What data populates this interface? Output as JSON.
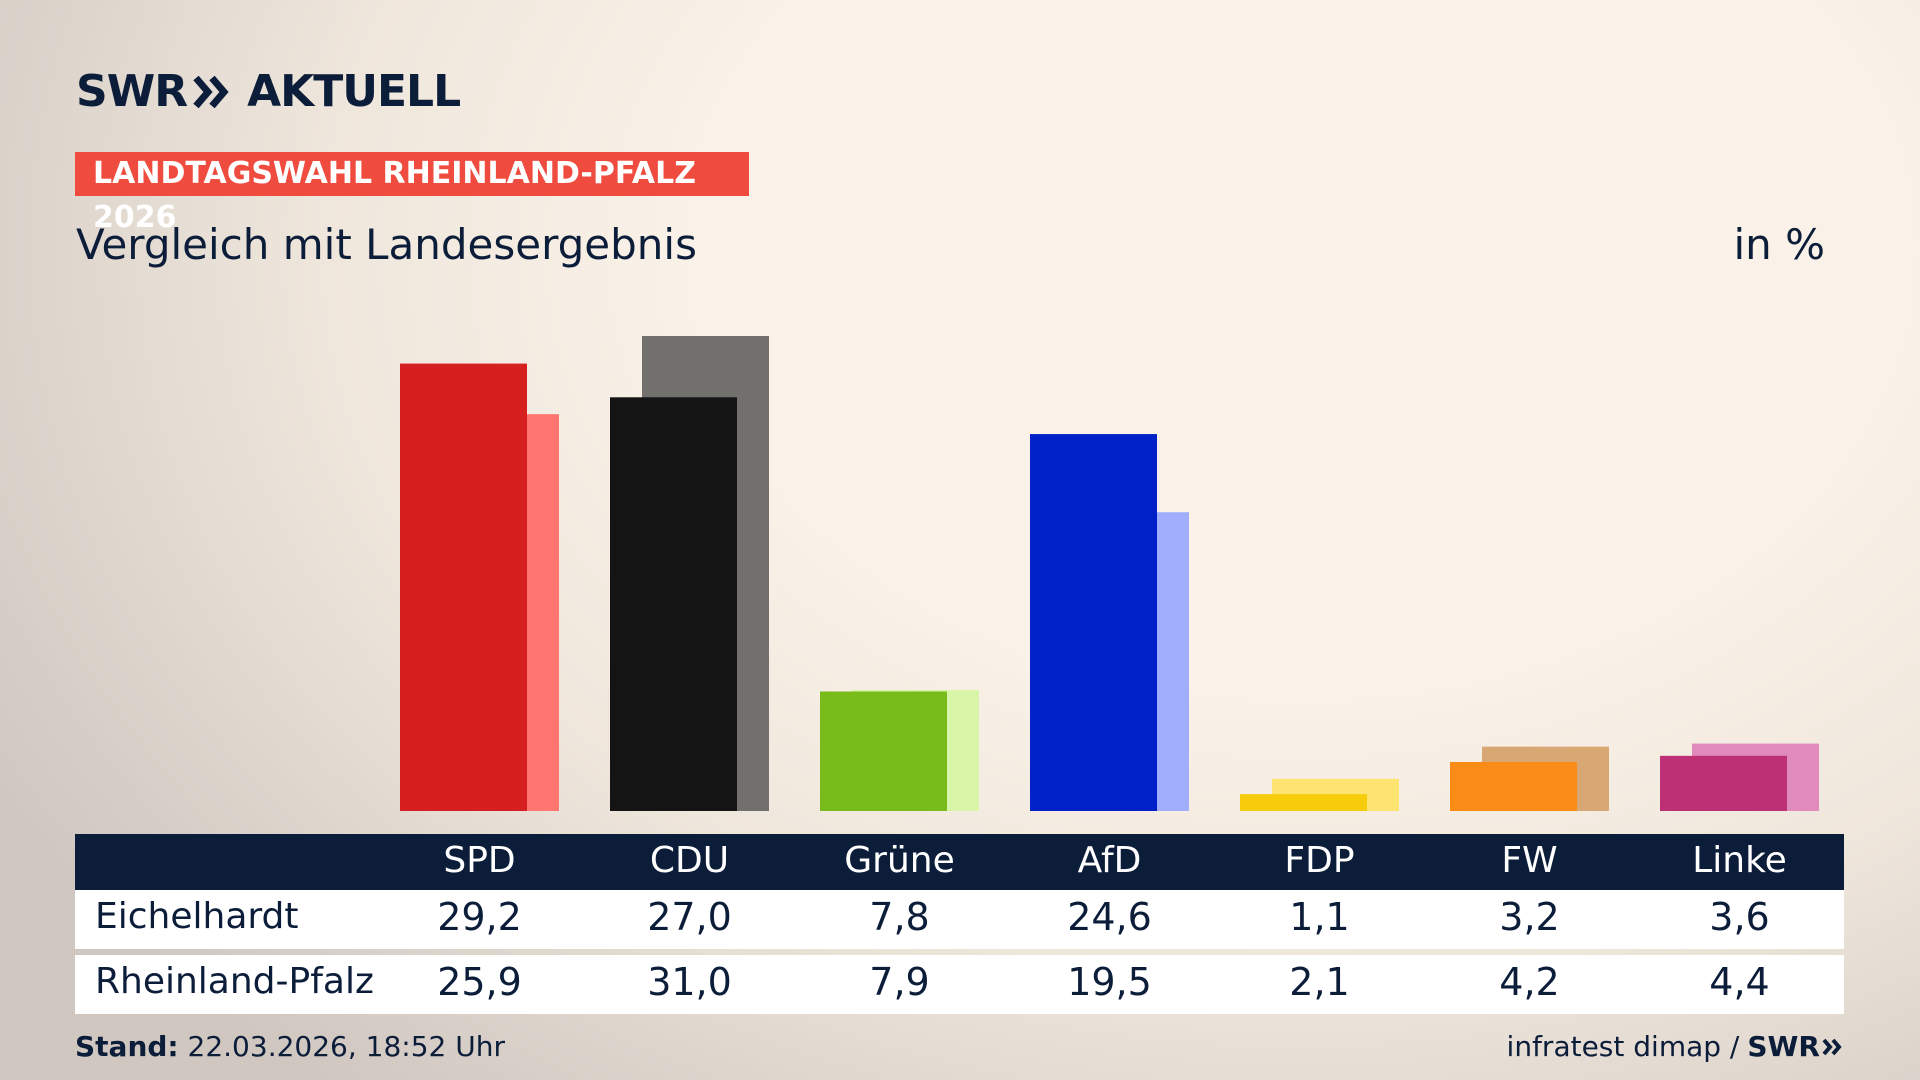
{
  "chart_data": {
    "type": "bar",
    "brand": "SWR",
    "brand_suffix": "AKTUELL",
    "kicker": "LANDTAGSWAHL RHEINLAND-PFALZ 2026",
    "title": "Vergleich mit Landesergebnis",
    "unit": "in %",
    "categories": [
      "SPD",
      "CDU",
      "Grüne",
      "AfD",
      "FDP",
      "FW",
      "Linke"
    ],
    "series": [
      {
        "name": "Eichelhardt",
        "colors": [
          "#d61f1f",
          "#141414",
          "#78bc1b",
          "#0020c8",
          "#f6cc0b",
          "#fb8b17",
          "#bd3075"
        ],
        "values": [
          29.2,
          27.0,
          7.8,
          24.6,
          1.1,
          3.2,
          3.6
        ],
        "value_labels": [
          "29,2",
          "27,0",
          "7,8",
          "24,6",
          "1,1",
          "3,2",
          "3,6"
        ]
      },
      {
        "name": "Rheinland-Pfalz",
        "colors": [
          "#ff7570",
          "#72706d",
          "#d8f5a8",
          "#a0aefd",
          "#fde471",
          "#d8a874",
          "#e08bbb"
        ],
        "values": [
          25.9,
          31.0,
          7.9,
          19.5,
          2.1,
          4.2,
          4.4
        ],
        "value_labels": [
          "25,9",
          "31,0",
          "7,9",
          "19,5",
          "2,1",
          "4,2",
          "4,4"
        ]
      }
    ],
    "footer_label": "Stand:",
    "footer_date": "22.03.2026, 18:52 Uhr",
    "source": "infratest dimap /",
    "source_brand": "SWR"
  }
}
